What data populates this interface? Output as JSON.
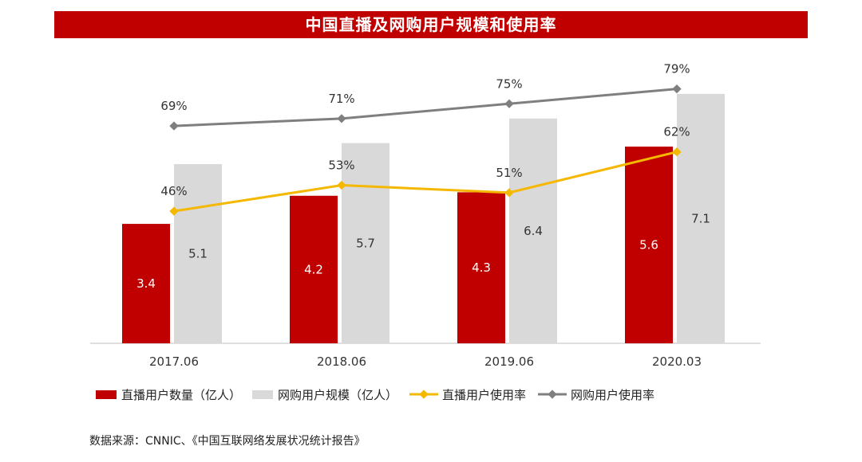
{
  "title": "中国直播及网购用户规模和使用率",
  "source": "数据来源：CNNIC、《中国互联网络发展状况统计报告》",
  "colors": {
    "title_bg": "#c00000",
    "live_users": "#c00000",
    "shop_users": "#d9d9d9",
    "live_rate": "#f5b800",
    "shop_rate": "#7f7f7f"
  },
  "chart_data": {
    "type": "bar+line",
    "categories": [
      "2017.06",
      "2018.06",
      "2019.06",
      "2020.03"
    ],
    "bar_series": [
      {
        "name": "直播用户数量（亿人）",
        "values": [
          3.4,
          4.2,
          4.3,
          5.6
        ],
        "labels": [
          "3.4",
          "4.2",
          "4.3",
          "5.6"
        ],
        "color": "#c00000"
      },
      {
        "name": "网购用户规模（亿人）",
        "values": [
          5.1,
          5.7,
          6.4,
          7.1
        ],
        "labels": [
          "5.1",
          "5.7",
          "6.4",
          "7.1"
        ],
        "color": "#d9d9d9"
      }
    ],
    "line_series": [
      {
        "name": "直播用户使用率",
        "values": [
          46,
          53,
          51,
          62
        ],
        "labels": [
          "46%",
          "53%",
          "51%",
          "62%"
        ],
        "color": "#f5b800"
      },
      {
        "name": "网购用户使用率",
        "values": [
          69,
          71,
          75,
          79
        ],
        "labels": [
          "69%",
          "71%",
          "75%",
          "79%"
        ],
        "color": "#7f7f7f"
      }
    ],
    "grid": false,
    "legend_position": "bottom"
  }
}
